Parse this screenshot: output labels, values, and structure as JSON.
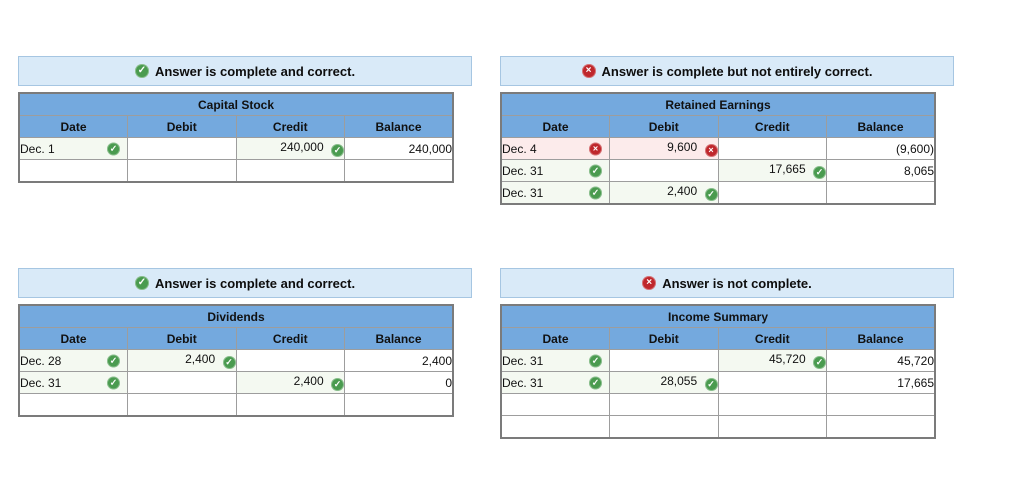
{
  "icons": {
    "check_glyph": "✓",
    "cross_glyph": "×"
  },
  "colors": {
    "header_blue": "#74a9de",
    "banner_bg": "#d9eaf8",
    "banner_border": "#a6c6e2",
    "correct_green": "#4a9b4f",
    "incorrect_red": "#bf272c",
    "correct_cell_bg": "#f4f9f1",
    "incorrect_cell_bg": "#fcebeb"
  },
  "panels": [
    {
      "status": {
        "text": "Answer is complete and correct.",
        "icon": "check"
      },
      "table": {
        "title": "Capital Stock",
        "columns": [
          "Date",
          "Debit",
          "Credit",
          "Balance"
        ],
        "rows": [
          {
            "date": "Dec. 1",
            "date_mark": "check",
            "debit": "",
            "debit_mark": "",
            "credit": "240,000",
            "credit_mark": "check",
            "balance": "240,000"
          },
          {
            "date": "",
            "date_mark": "",
            "debit": "",
            "debit_mark": "",
            "credit": "",
            "credit_mark": "",
            "balance": ""
          }
        ]
      }
    },
    {
      "status": {
        "text": "Answer is complete but not entirely correct.",
        "icon": "cross"
      },
      "table": {
        "title": "Retained Earnings",
        "columns": [
          "Date",
          "Debit",
          "Credit",
          "Balance"
        ],
        "rows": [
          {
            "date": "Dec. 4",
            "date_mark": "cross",
            "debit": "9,600",
            "debit_mark": "cross",
            "credit": "",
            "credit_mark": "",
            "balance": "(9,600)"
          },
          {
            "date": "Dec. 31",
            "date_mark": "check",
            "debit": "",
            "debit_mark": "",
            "credit": "17,665",
            "credit_mark": "check",
            "balance": "8,065"
          },
          {
            "date": "Dec. 31",
            "date_mark": "check",
            "debit": "2,400",
            "debit_mark": "check",
            "credit": "",
            "credit_mark": "",
            "balance": ""
          }
        ]
      }
    },
    {
      "status": {
        "text": "Answer is complete and correct.",
        "icon": "check"
      },
      "table": {
        "title": "Dividends",
        "columns": [
          "Date",
          "Debit",
          "Credit",
          "Balance"
        ],
        "rows": [
          {
            "date": "Dec. 28",
            "date_mark": "check",
            "debit": "2,400",
            "debit_mark": "check",
            "credit": "",
            "credit_mark": "",
            "balance": "2,400"
          },
          {
            "date": "Dec. 31",
            "date_mark": "check",
            "debit": "",
            "debit_mark": "",
            "credit": "2,400",
            "credit_mark": "check",
            "balance": "0"
          },
          {
            "date": "",
            "date_mark": "",
            "debit": "",
            "debit_mark": "",
            "credit": "",
            "credit_mark": "",
            "balance": ""
          }
        ]
      }
    },
    {
      "status": {
        "text": "Answer is not complete.",
        "icon": "cross"
      },
      "table": {
        "title": "Income Summary",
        "columns": [
          "Date",
          "Debit",
          "Credit",
          "Balance"
        ],
        "rows": [
          {
            "date": "Dec. 31",
            "date_mark": "check",
            "debit": "",
            "debit_mark": "",
            "credit": "45,720",
            "credit_mark": "check",
            "balance": "45,720"
          },
          {
            "date": "Dec. 31",
            "date_mark": "check",
            "debit": "28,055",
            "debit_mark": "check",
            "credit": "",
            "credit_mark": "",
            "balance": "17,665"
          },
          {
            "date": "",
            "date_mark": "",
            "debit": "",
            "debit_mark": "",
            "credit": "",
            "credit_mark": "",
            "balance": ""
          },
          {
            "date": "",
            "date_mark": "",
            "debit": "",
            "debit_mark": "",
            "credit": "",
            "credit_mark": "",
            "balance": ""
          }
        ]
      }
    }
  ]
}
